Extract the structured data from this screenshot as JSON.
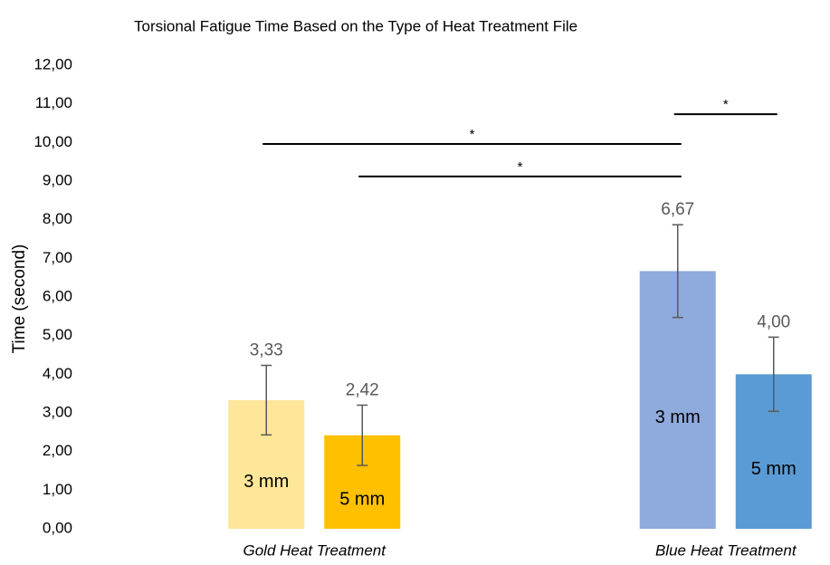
{
  "chart_data": {
    "type": "bar",
    "title": "Torsional Fatigue Time Based on the Type of Heat Treatment File",
    "y_label": "Time (second)",
    "categories": [
      "Gold Heat Treatment",
      "Blue Heat Treatment"
    ],
    "series": [
      {
        "name": "3 mm",
        "colors": [
          "#FFE699",
          "#8FAADC"
        ],
        "values": [
          3.33,
          6.67
        ],
        "value_labels": [
          "3,33",
          "6,67"
        ],
        "errors": [
          0.9,
          1.2
        ]
      },
      {
        "name": "5 mm",
        "colors": [
          "#FFC000",
          "#5B9BD5"
        ],
        "values": [
          2.42,
          4.0
        ],
        "value_labels": [
          "2,42",
          "4,00"
        ],
        "errors": [
          0.78,
          0.96
        ]
      }
    ],
    "ylim": [
      0,
      12
    ],
    "yticks": [
      {
        "value": 0,
        "label": "0,00"
      },
      {
        "value": 1,
        "label": "1,00"
      },
      {
        "value": 2,
        "label": "2,00"
      },
      {
        "value": 3,
        "label": "3,00"
      },
      {
        "value": 4,
        "label": "4,00"
      },
      {
        "value": 5,
        "label": "5,00"
      },
      {
        "value": 6,
        "label": "6,00"
      },
      {
        "value": 7,
        "label": "7,00"
      },
      {
        "value": 8,
        "label": "8,00"
      },
      {
        "value": 9,
        "label": "9,00"
      },
      {
        "value": 10,
        "label": "10,00"
      },
      {
        "value": 11,
        "label": "11,00"
      },
      {
        "value": 12,
        "label": "12,00"
      }
    ],
    "grid": false,
    "annotations": [
      {
        "text": "*",
        "from": [
          0,
          0
        ],
        "to": [
          1,
          0
        ],
        "y": 9.96
      },
      {
        "text": "*",
        "from": [
          0,
          1
        ],
        "to": [
          1,
          0
        ],
        "y": 9.12
      },
      {
        "text": "*",
        "from": [
          1,
          0
        ],
        "to": [
          1,
          1
        ],
        "y": 10.73
      }
    ]
  }
}
